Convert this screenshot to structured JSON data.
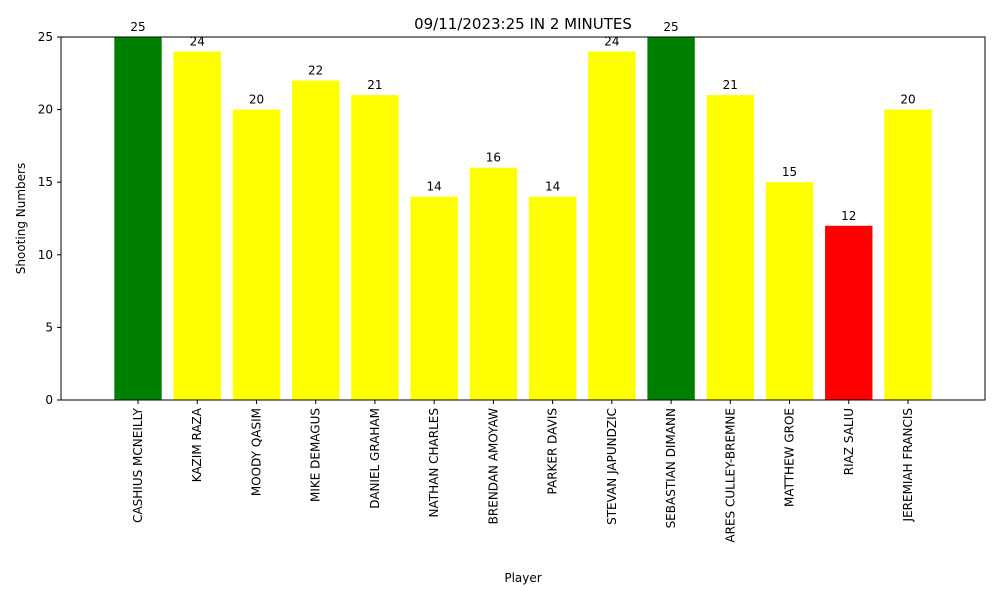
{
  "chart_data": {
    "type": "bar",
    "title": "09/11/2023:25 IN 2 MINUTES",
    "xlabel": "Player",
    "ylabel": "Shooting Numbers",
    "ylim": [
      0,
      25
    ],
    "yticks": [
      0,
      5,
      10,
      15,
      20,
      25
    ],
    "grid": false,
    "categories": [
      "CASHIUS MCNEILLY",
      "KAZIM RAZA",
      "MOODY QASIM",
      "MIKE DEMAGUS",
      "DANIEL GRAHAM",
      "NATHAN CHARLES",
      "BRENDAN AMOYAW",
      "PARKER DAVIS",
      "STEVAN JAPUNDZIC",
      "SEBASTIAN DIMANN",
      "ARES CULLEY-BREMNE",
      "MATTHEW GROE",
      "RIAZ SALIU",
      "JEREMIAH FRANCIS"
    ],
    "values": [
      25,
      24,
      20,
      22,
      21,
      14,
      16,
      14,
      24,
      25,
      21,
      15,
      12,
      20
    ],
    "colors": [
      "#008000",
      "#ffff00",
      "#ffff00",
      "#ffff00",
      "#ffff00",
      "#ffff00",
      "#ffff00",
      "#ffff00",
      "#ffff00",
      "#008000",
      "#ffff00",
      "#ffff00",
      "#ff0000",
      "#ffff00"
    ]
  }
}
